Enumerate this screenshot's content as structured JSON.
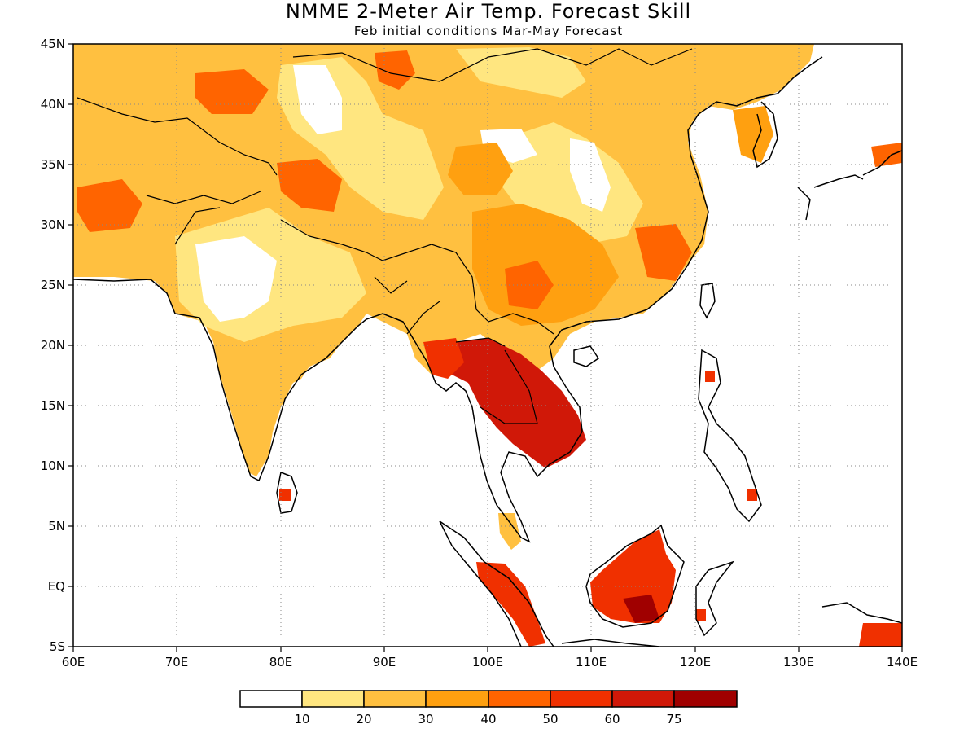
{
  "title": "NMME 2-Meter Air Temp. Forecast Skill",
  "subtitle": "Feb initial conditions  Mar-May Forecast",
  "map": {
    "lon_range": [
      60,
      140
    ],
    "lat_range": [
      -5,
      45
    ],
    "lon_ticks": [
      "60E",
      "70E",
      "80E",
      "90E",
      "100E",
      "110E",
      "120E",
      "130E",
      "140E"
    ],
    "lat_ticks": [
      "5S",
      "EQ",
      "5N",
      "10N",
      "15N",
      "20N",
      "25N",
      "30N",
      "35N",
      "40N",
      "45N"
    ],
    "grid": "dotted"
  },
  "legend": {
    "ticks": [
      "10",
      "20",
      "30",
      "40",
      "50",
      "60",
      "75"
    ],
    "colors": [
      "#ffffff",
      "#ffe680",
      "#ffc040",
      "#ffa010",
      "#ff6400",
      "#f03000",
      "#d01808",
      "#a00000"
    ]
  }
}
